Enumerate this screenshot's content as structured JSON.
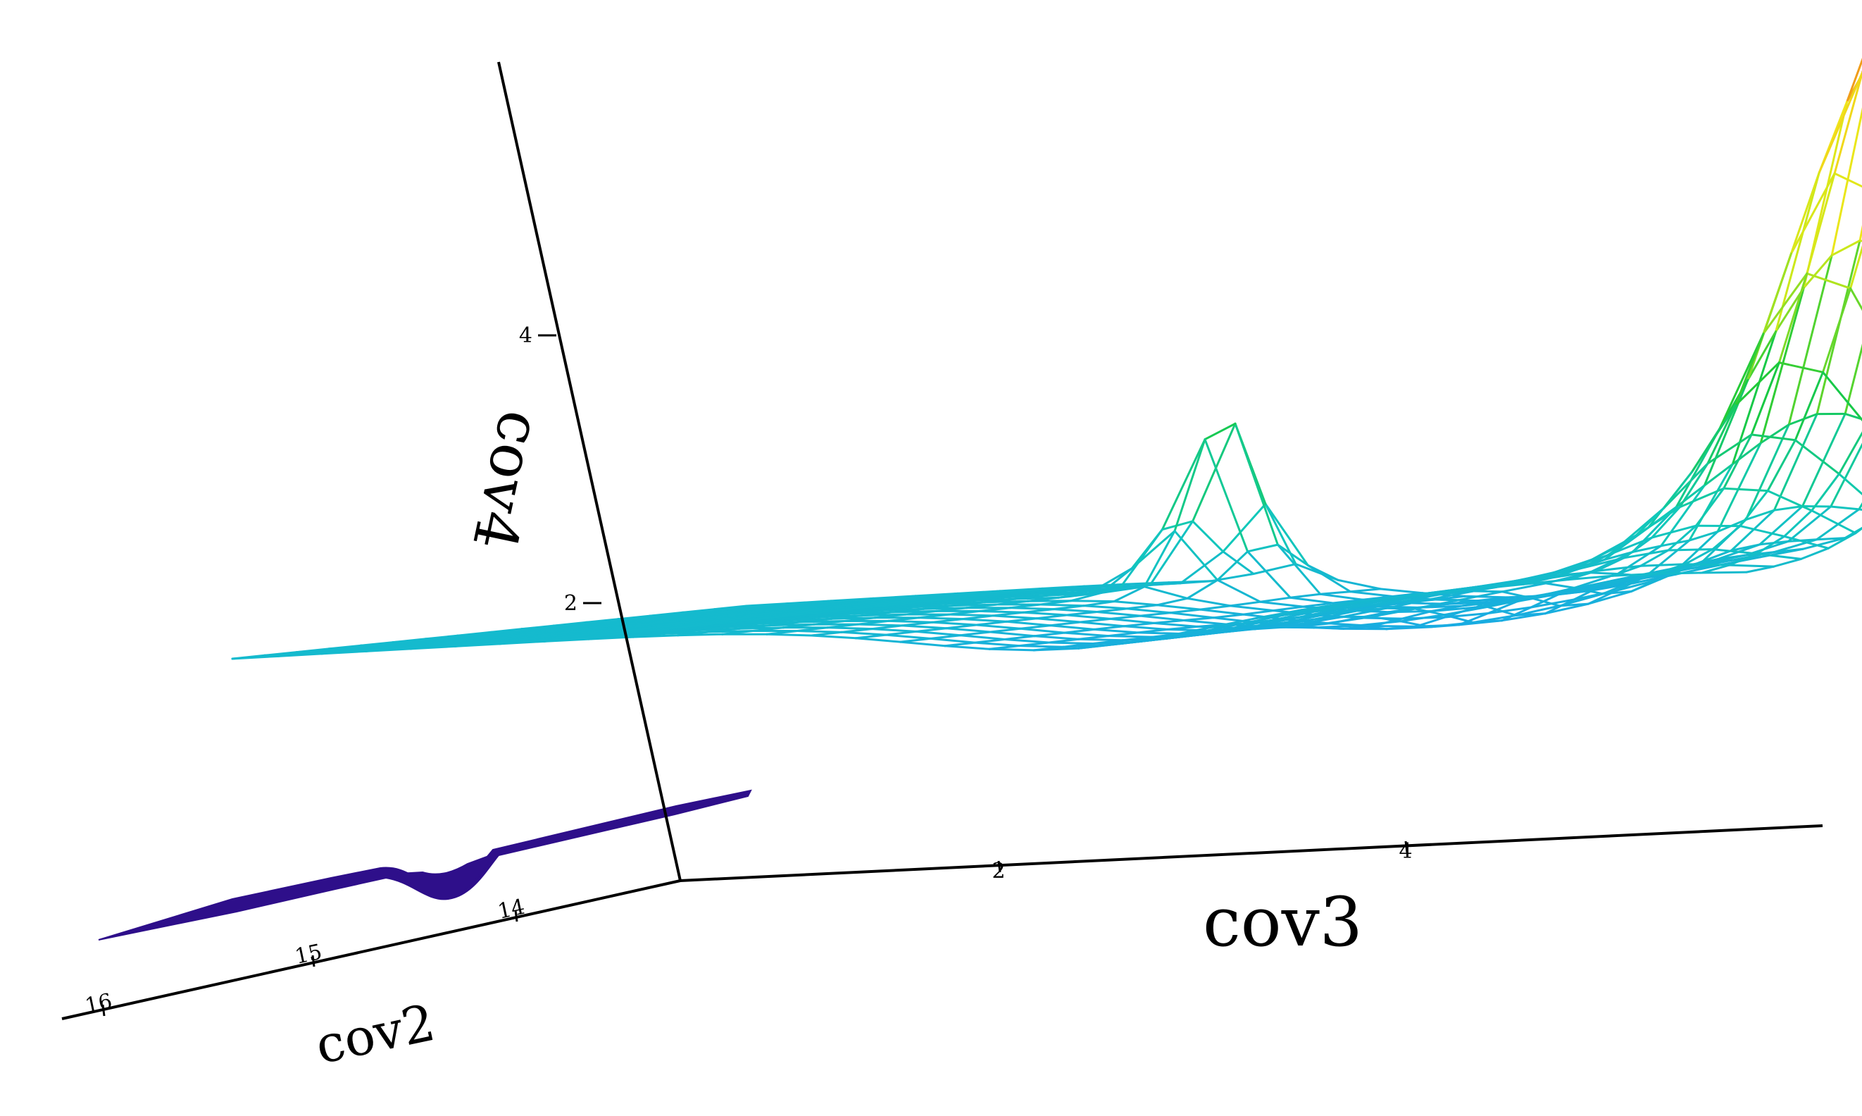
{
  "chart_data": {
    "type": "surface-3d",
    "title": "",
    "axes": {
      "x": {
        "label": "cov3",
        "ticks": [
          2,
          4
        ]
      },
      "y": {
        "label": "cov2",
        "ticks": [
          14,
          15,
          16
        ]
      },
      "z": {
        "label": "cov4",
        "ticks": [
          2,
          4
        ]
      }
    },
    "grid": false,
    "legend": null,
    "colormap": [
      "#2e0f8a",
      "#1aa7e8",
      "#11c9b8",
      "#19c93a",
      "#c8e81a",
      "#f0e61a",
      "#f08a1a",
      "#e81a1a"
    ],
    "surface": {
      "style": "wireframe",
      "z_peak_approx": 6.4,
      "z_plateau_approx": 2.0,
      "z_min_approx": 1.6
    },
    "floor_projection": {
      "style": "filled-contour",
      "color": "#2e0f8a"
    }
  }
}
